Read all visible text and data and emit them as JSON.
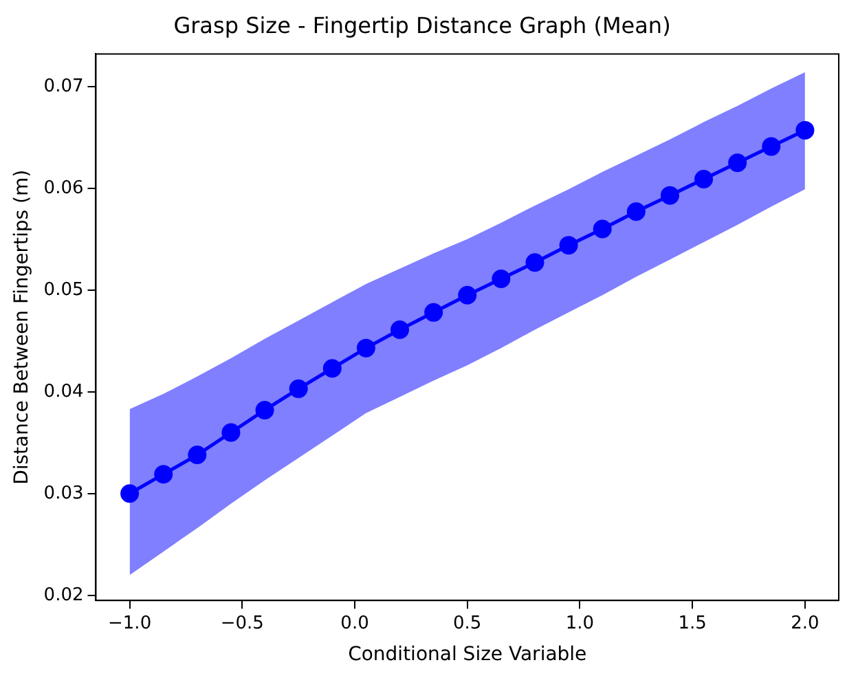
{
  "chart_data": {
    "type": "line",
    "title": "Grasp Size - Fingertip Distance Graph (Mean)",
    "xlabel": "Conditional Size Variable",
    "ylabel": "Distance Between Fingertips (m)",
    "x": [
      -1,
      -0.85,
      -0.7,
      -0.55,
      -0.4,
      -0.25,
      -0.1,
      0.05,
      0.2,
      0.35,
      0.5,
      0.65,
      0.8,
      0.95,
      1.1,
      1.25,
      1.4,
      1.55,
      1.7,
      1.85,
      2
    ],
    "series": [
      {
        "color": "#0000ff",
        "values": [
          0.03,
          0.0319,
          0.0338,
          0.036,
          0.0382,
          0.0403,
          0.0423,
          0.0443,
          0.0461,
          0.0478,
          0.0495,
          0.0511,
          0.0527,
          0.0544,
          0.056,
          0.0577,
          0.0593,
          0.0609,
          0.0625,
          0.0641,
          0.0657
        ],
        "lower": [
          0.022,
          0.0243,
          0.0266,
          0.029,
          0.0313,
          0.0335,
          0.0357,
          0.0379,
          0.0395,
          0.0411,
          0.0426,
          0.0443,
          0.0461,
          0.0478,
          0.0495,
          0.0513,
          0.053,
          0.0547,
          0.0564,
          0.0582,
          0.0599
        ],
        "upper": [
          0.0383,
          0.0398,
          0.0415,
          0.0433,
          0.0452,
          0.047,
          0.0488,
          0.0506,
          0.0521,
          0.0536,
          0.055,
          0.0566,
          0.0583,
          0.0599,
          0.0616,
          0.0632,
          0.0648,
          0.0665,
          0.0681,
          0.0698,
          0.0714
        ]
      }
    ],
    "xlim": [
      -1.15,
      2.15
    ],
    "xticks": [
      {
        "value": -1,
        "label": "−1.0"
      },
      {
        "value": -0.5,
        "label": "−0.5"
      },
      {
        "value": 0,
        "label": "0.0"
      },
      {
        "value": 0.5,
        "label": "0.5"
      },
      {
        "value": 1,
        "label": "1.0"
      },
      {
        "value": 1.5,
        "label": "1.5"
      },
      {
        "value": 2,
        "label": "2.0"
      }
    ],
    "ylim": [
      0.0195,
      0.0732
    ],
    "yticks": [
      {
        "value": 0.02,
        "label": "0.02"
      },
      {
        "value": 0.03,
        "label": "0.03"
      },
      {
        "value": 0.04,
        "label": "0.04"
      },
      {
        "value": 0.05,
        "label": "0.05"
      },
      {
        "value": 0.06,
        "label": "0.06"
      },
      {
        "value": 0.07,
        "label": "0.07"
      }
    ],
    "grid": false,
    "legend": false,
    "marker": "circle",
    "line_style": "solid"
  }
}
